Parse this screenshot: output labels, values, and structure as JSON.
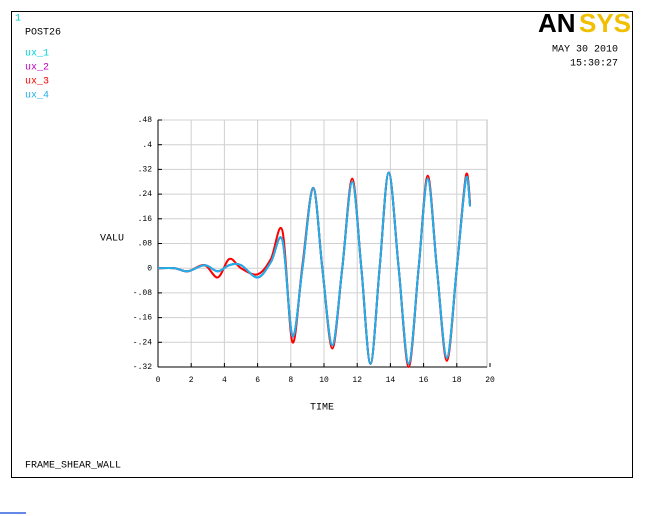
{
  "chart_data": {
    "type": "line",
    "window_number": "1",
    "header": "POST26",
    "logo": [
      "AN",
      "SYS"
    ],
    "date": "MAY 30 2010",
    "time": "15:30:27",
    "title": "FRAME_SHEAR_WALL",
    "xlabel": "TIME",
    "ylabel": "VALU",
    "x": [
      0,
      1,
      1.8,
      2.8,
      3.6,
      4.3,
      5.0,
      6.0,
      6.8,
      7.5,
      8.1,
      8.7,
      9.35,
      9.9,
      10.5,
      11.1,
      11.7,
      12.25,
      12.8,
      13.35,
      13.9,
      14.5,
      15.1,
      15.7,
      16.25,
      16.8,
      17.4,
      18.0,
      18.55,
      18.8
    ],
    "series": [
      {
        "name": "ux_1",
        "color": "#00d8d8",
        "values": [
          0,
          0,
          -0.01,
          0.01,
          -0.01,
          0.01,
          0.01,
          -0.03,
          0.02,
          0.09,
          -0.22,
          0,
          0.26,
          0,
          -0.25,
          0,
          0.28,
          0,
          -0.31,
          0,
          0.31,
          0,
          -0.31,
          0,
          0.29,
          0,
          -0.29,
          0,
          0.29,
          0.2
        ]
      },
      {
        "name": "ux_2",
        "color": "#c000c0",
        "values": [
          0,
          0,
          -0.01,
          0.01,
          -0.01,
          0.01,
          0.01,
          -0.03,
          0.02,
          0.09,
          -0.22,
          0,
          0.26,
          0,
          -0.25,
          0,
          0.28,
          0,
          -0.31,
          0,
          0.31,
          0,
          -0.31,
          0,
          0.29,
          0,
          -0.29,
          0,
          0.29,
          0.2
        ]
      },
      {
        "name": "ux_3",
        "color": "#ff0000",
        "values": [
          0,
          0,
          -0.01,
          0.01,
          -0.03,
          0.03,
          0,
          -0.02,
          0.03,
          0.12,
          -0.24,
          0.01,
          0.26,
          0,
          -0.26,
          0,
          0.29,
          0,
          -0.31,
          0,
          0.31,
          0,
          -0.32,
          0,
          0.3,
          0,
          -0.3,
          0,
          0.3,
          0.21
        ]
      },
      {
        "name": "ux_4",
        "color": "#20b0e8",
        "values": [
          0,
          0,
          -0.01,
          0.01,
          -0.01,
          0.01,
          0.01,
          -0.03,
          0.02,
          0.09,
          -0.22,
          0,
          0.26,
          0,
          -0.25,
          0,
          0.28,
          0,
          -0.31,
          0,
          0.31,
          0,
          -0.31,
          0,
          0.29,
          0,
          -0.29,
          0,
          0.29,
          0.2
        ]
      }
    ],
    "xlim": [
      0,
      20
    ],
    "xticks": [
      0,
      2,
      4,
      6,
      8,
      10,
      12,
      14,
      16,
      18,
      20
    ],
    "ylim": [
      -0.32,
      0.48
    ],
    "yticks": [
      {
        "value": -0.32,
        "label": "-.32"
      },
      {
        "value": -0.24,
        "label": "-.24"
      },
      {
        "value": -0.16,
        "label": "-.16"
      },
      {
        "value": -0.08,
        "label": "-.08"
      },
      0,
      {
        "value": 0.08,
        "label": ".08"
      },
      {
        "value": 0.16,
        "label": ".16"
      },
      {
        "value": 0.24,
        "label": ".24"
      },
      {
        "value": 0.32,
        "label": ".32"
      },
      {
        "value": 0.4,
        "label": ".4"
      },
      {
        "value": 0.48,
        "label": ".48"
      }
    ],
    "grid": true,
    "logo_colors": [
      "#000000",
      "#f0c000"
    ]
  }
}
